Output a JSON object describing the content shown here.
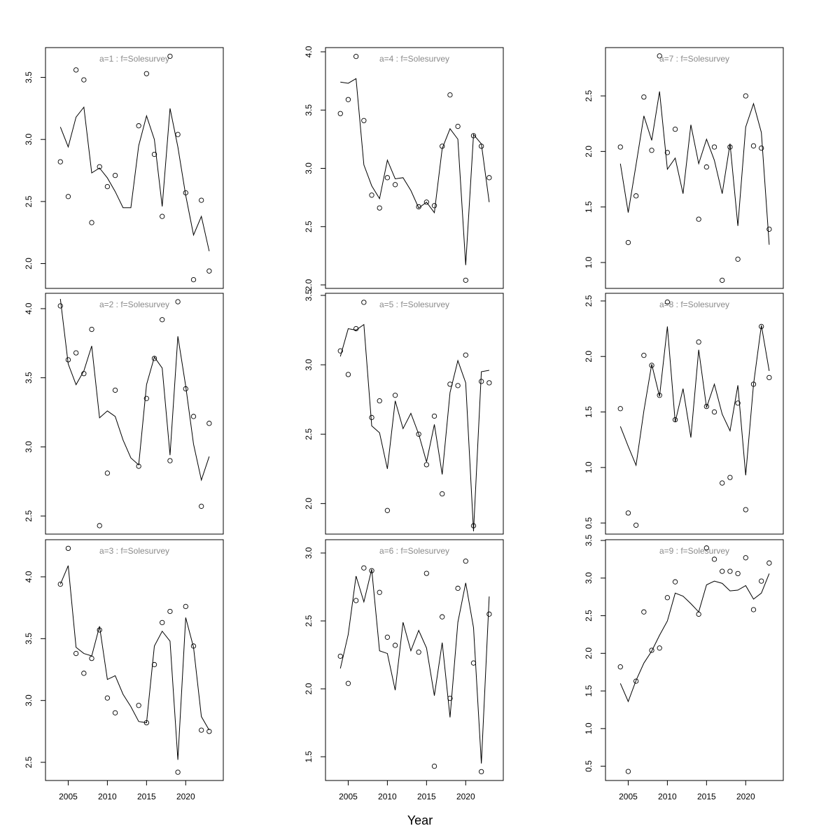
{
  "xlabel": "Year",
  "chart_data": [
    {
      "type": "line",
      "title": "a=1  :  f=Solesurvey",
      "x": [
        2004,
        2005,
        2006,
        2007,
        2008,
        2009,
        2010,
        2011,
        2012,
        2013,
        2014,
        2015,
        2016,
        2017,
        2018,
        2019,
        2020,
        2021,
        2022,
        2023
      ],
      "xlim": [
        2002.1,
        2024.8
      ],
      "ylim": [
        1.8,
        3.74
      ],
      "yticks": [
        {
          "value": 2,
          "label": "2.0"
        },
        2.5,
        {
          "value": 3,
          "label": "3.0"
        },
        3.5
      ],
      "series": [
        {
          "marker": "circle",
          "color": "#000000",
          "values": [
            2.82,
            2.54,
            3.56,
            3.48,
            2.33,
            2.78,
            2.62,
            2.71,
            null,
            null,
            3.11,
            3.53,
            2.88,
            2.38,
            3.67,
            3.04,
            2.57,
            1.87,
            2.51,
            1.94
          ]
        },
        {
          "marker": "none",
          "color": "#000000",
          "values": [
            3.1,
            2.94,
            3.18,
            3.26,
            2.73,
            2.77,
            2.69,
            2.58,
            2.45,
            2.45,
            2.95,
            3.19,
            3.0,
            2.46,
            3.25,
            2.94,
            2.55,
            2.23,
            2.38,
            2.1
          ]
        }
      ]
    },
    {
      "type": "line",
      "title": "a=2  :  f=Solesurvey",
      "x": [
        2004,
        2005,
        2006,
        2007,
        2008,
        2009,
        2010,
        2011,
        2012,
        2013,
        2014,
        2015,
        2016,
        2017,
        2018,
        2019,
        2020,
        2021,
        2022,
        2023
      ],
      "xlim": [
        2002.1,
        2024.8
      ],
      "ylim": [
        2.369,
        4.111
      ],
      "yticks": [
        2.5,
        {
          "value": 3,
          "label": "3.0"
        },
        3.5,
        {
          "value": 4,
          "label": "4.0"
        }
      ],
      "series": [
        {
          "marker": "circle",
          "color": "#000000",
          "values": [
            4.02,
            3.63,
            3.68,
            3.53,
            3.85,
            2.43,
            2.81,
            3.41,
            null,
            null,
            2.86,
            3.35,
            3.64,
            3.92,
            2.9,
            4.05,
            3.42,
            3.22,
            2.57,
            3.17
          ]
        },
        {
          "marker": "none",
          "color": "#000000",
          "values": [
            4.07,
            3.6,
            3.45,
            3.55,
            3.73,
            3.21,
            3.26,
            3.22,
            3.05,
            2.92,
            2.87,
            3.45,
            3.65,
            3.57,
            2.94,
            3.8,
            3.44,
            3.02,
            2.76,
            2.93
          ]
        }
      ]
    },
    {
      "type": "line",
      "title": "a=3  :  f=Solesurvey",
      "x": [
        2004,
        2005,
        2006,
        2007,
        2008,
        2009,
        2010,
        2011,
        2012,
        2013,
        2014,
        2015,
        2016,
        2017,
        2018,
        2019,
        2020,
        2021,
        2022,
        2023
      ],
      "xlim": [
        2002.1,
        2024.8
      ],
      "ylim": [
        2.353,
        4.3
      ],
      "yticks": [
        2.5,
        {
          "value": 3,
          "label": "3.0"
        },
        3.5,
        {
          "value": 4,
          "label": "4.0"
        }
      ],
      "xticks": [
        2005,
        2010,
        2015,
        2020
      ],
      "series": [
        {
          "marker": "circle",
          "color": "#000000",
          "values": [
            3.94,
            4.23,
            3.38,
            3.22,
            3.34,
            3.57,
            3.02,
            2.9,
            null,
            null,
            2.96,
            2.82,
            3.29,
            3.63,
            3.72,
            2.42,
            3.76,
            3.44,
            2.76,
            2.75
          ]
        },
        {
          "marker": "none",
          "color": "#000000",
          "values": [
            3.94,
            4.09,
            3.43,
            3.38,
            3.36,
            3.6,
            3.17,
            3.2,
            3.05,
            2.95,
            2.83,
            2.82,
            3.44,
            3.56,
            3.48,
            2.52,
            3.67,
            3.43,
            2.87,
            2.76
          ]
        }
      ]
    },
    {
      "type": "line",
      "title": "a=4  :  f=Solesurvey",
      "x": [
        2004,
        2005,
        2006,
        2007,
        2008,
        2009,
        2010,
        2011,
        2012,
        2013,
        2014,
        2015,
        2016,
        2017,
        2018,
        2019,
        2020,
        2021,
        2022,
        2023
      ],
      "xlim": [
        2002.1,
        2024.8
      ],
      "ylim": [
        1.97,
        4.036
      ],
      "yticks": [
        {
          "value": 2,
          "label": "2.0"
        },
        2.5,
        {
          "value": 3,
          "label": "3.0"
        },
        3.5,
        {
          "value": 4,
          "label": "4.0"
        }
      ],
      "series": [
        {
          "marker": "circle",
          "color": "#000000",
          "values": [
            3.47,
            3.59,
            3.96,
            3.41,
            2.77,
            2.66,
            2.92,
            2.86,
            null,
            null,
            2.67,
            2.71,
            2.68,
            3.19,
            3.63,
            3.36,
            2.04,
            3.28,
            3.19,
            2.92
          ]
        },
        {
          "marker": "none",
          "color": "#000000",
          "values": [
            3.74,
            3.73,
            3.77,
            3.03,
            2.85,
            2.74,
            3.07,
            2.91,
            2.92,
            2.81,
            2.66,
            2.71,
            2.62,
            3.17,
            3.34,
            3.25,
            2.17,
            3.29,
            3.21,
            2.71
          ]
        }
      ]
    },
    {
      "type": "line",
      "title": "a=5  :  f=Solesurvey",
      "x": [
        2004,
        2005,
        2006,
        2007,
        2008,
        2009,
        2010,
        2011,
        2012,
        2013,
        2014,
        2015,
        2016,
        2017,
        2018,
        2019,
        2020,
        2021,
        2022,
        2023
      ],
      "xlim": [
        2002.1,
        2024.8
      ],
      "ylim": [
        1.78,
        3.515
      ],
      "yticks": [
        {
          "value": 2,
          "label": "2.0"
        },
        2.5,
        {
          "value": 3,
          "label": "3.0"
        },
        3.5
      ],
      "series": [
        {
          "marker": "circle",
          "color": "#000000",
          "values": [
            3.1,
            2.93,
            3.26,
            3.45,
            2.62,
            2.74,
            1.95,
            2.78,
            null,
            null,
            2.5,
            2.28,
            2.63,
            2.07,
            2.86,
            2.85,
            3.07,
            1.84,
            2.88,
            2.87
          ]
        },
        {
          "marker": "none",
          "color": "#000000",
          "values": [
            3.06,
            3.26,
            3.25,
            3.29,
            2.56,
            2.51,
            2.25,
            2.74,
            2.54,
            2.65,
            2.5,
            2.3,
            2.57,
            2.21,
            2.8,
            3.03,
            2.87,
            1.8,
            2.95,
            2.96
          ]
        }
      ]
    },
    {
      "type": "line",
      "title": "a=6  :  f=Solesurvey",
      "x": [
        2004,
        2005,
        2006,
        2007,
        2008,
        2009,
        2010,
        2011,
        2012,
        2013,
        2014,
        2015,
        2016,
        2017,
        2018,
        2019,
        2020,
        2021,
        2022,
        2023
      ],
      "xlim": [
        2002.1,
        2024.8
      ],
      "ylim": [
        1.325,
        3.098
      ],
      "yticks": [
        1.5,
        {
          "value": 2,
          "label": "2.0"
        },
        2.5,
        {
          "value": 3,
          "label": "3.0"
        }
      ],
      "xticks": [
        2005,
        2010,
        2015,
        2020
      ],
      "series": [
        {
          "marker": "circle",
          "color": "#000000",
          "values": [
            2.24,
            2.04,
            2.65,
            2.89,
            2.87,
            2.71,
            2.38,
            2.32,
            null,
            null,
            2.27,
            2.85,
            1.43,
            2.53,
            1.93,
            2.74,
            2.94,
            2.19,
            1.39,
            2.55
          ]
        },
        {
          "marker": "none",
          "color": "#000000",
          "values": [
            2.15,
            2.4,
            2.83,
            2.64,
            2.88,
            2.28,
            2.26,
            1.99,
            2.49,
            2.28,
            2.43,
            2.3,
            1.95,
            2.34,
            1.79,
            2.49,
            2.78,
            2.45,
            1.45,
            2.68
          ]
        }
      ]
    },
    {
      "type": "line",
      "title": "a=7  :  f=Solesurvey",
      "x": [
        2004,
        2005,
        2006,
        2007,
        2008,
        2009,
        2010,
        2011,
        2012,
        2013,
        2014,
        2015,
        2016,
        2017,
        2018,
        2019,
        2020,
        2021,
        2022,
        2023
      ],
      "xlim": [
        2002.1,
        2024.8
      ],
      "ylim": [
        0.767,
        2.935
      ],
      "yticks": [
        {
          "value": 1,
          "label": "1.0"
        },
        1.5,
        {
          "value": 2,
          "label": "2.0"
        },
        2.5
      ],
      "series": [
        {
          "marker": "circle",
          "color": "#000000",
          "values": [
            2.04,
            1.18,
            1.6,
            2.49,
            2.01,
            2.86,
            1.99,
            2.2,
            null,
            null,
            1.39,
            1.86,
            2.04,
            0.84,
            2.04,
            1.03,
            2.5,
            2.05,
            2.03,
            1.3
          ]
        },
        {
          "marker": "none",
          "color": "#000000",
          "values": [
            1.89,
            1.45,
            1.88,
            2.32,
            2.1,
            2.54,
            1.84,
            1.94,
            1.62,
            2.24,
            1.89,
            2.11,
            1.92,
            1.62,
            2.07,
            1.33,
            2.22,
            2.43,
            2.17,
            1.16
          ]
        }
      ]
    },
    {
      "type": "line",
      "title": "a=8  :  f=Solesurvey",
      "x": [
        2004,
        2005,
        2006,
        2007,
        2008,
        2009,
        2010,
        2011,
        2012,
        2013,
        2014,
        2015,
        2016,
        2017,
        2018,
        2019,
        2020,
        2021,
        2022,
        2023
      ],
      "xlim": [
        2002.1,
        2024.8
      ],
      "ylim": [
        0.4,
        2.569
      ],
      "yticks": [
        0.5,
        {
          "value": 1,
          "label": "1.0"
        },
        1.5,
        {
          "value": 2,
          "label": "2.0"
        },
        2.5
      ],
      "series": [
        {
          "marker": "circle",
          "color": "#000000",
          "values": [
            1.53,
            0.59,
            0.48,
            2.01,
            1.92,
            1.65,
            2.49,
            1.43,
            null,
            null,
            2.13,
            1.55,
            1.5,
            0.86,
            0.91,
            1.58,
            0.62,
            1.75,
            2.27,
            1.81
          ]
        },
        {
          "marker": "none",
          "color": "#000000",
          "values": [
            1.37,
            1.19,
            1.02,
            1.51,
            1.93,
            1.64,
            2.27,
            1.41,
            1.71,
            1.27,
            2.06,
            1.54,
            1.75,
            1.48,
            1.33,
            1.74,
            0.93,
            1.75,
            2.28,
            1.87
          ]
        }
      ]
    },
    {
      "type": "line",
      "title": "a=9  :  f=Solesurvey",
      "x": [
        2004,
        2005,
        2006,
        2007,
        2008,
        2009,
        2010,
        2011,
        2012,
        2013,
        2014,
        2015,
        2016,
        2017,
        2018,
        2019,
        2020,
        2021,
        2022,
        2023
      ],
      "xlim": [
        2002.1,
        2024.8
      ],
      "ylim": [
        0.31,
        3.51
      ],
      "yticks": [
        0.5,
        {
          "value": 1,
          "label": "1.0"
        },
        1.5,
        {
          "value": 2,
          "label": "2.0"
        },
        2.5,
        {
          "value": 3,
          "label": "3.0"
        },
        3.5
      ],
      "xticks": [
        2005,
        2010,
        2015,
        2020
      ],
      "series": [
        {
          "marker": "circle",
          "color": "#000000",
          "values": [
            1.82,
            0.43,
            1.63,
            2.55,
            2.04,
            2.07,
            2.74,
            2.95,
            null,
            null,
            2.52,
            3.4,
            3.25,
            3.09,
            3.09,
            3.06,
            3.27,
            2.58,
            2.96,
            3.2
          ]
        },
        {
          "marker": "none",
          "color": "#000000",
          "values": [
            1.6,
            1.36,
            1.64,
            1.87,
            2.03,
            2.24,
            2.43,
            2.8,
            2.76,
            2.66,
            2.55,
            2.91,
            2.96,
            2.93,
            2.83,
            2.84,
            2.9,
            2.72,
            2.8,
            3.06
          ]
        }
      ]
    }
  ]
}
